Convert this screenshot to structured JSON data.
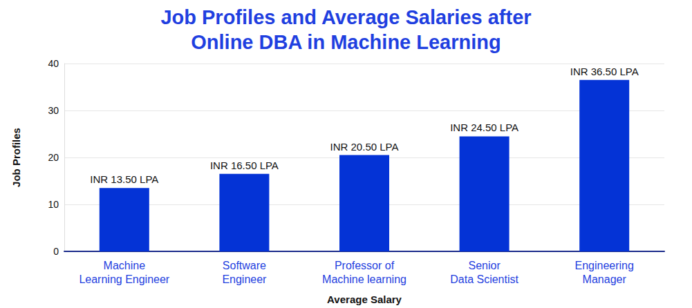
{
  "chart_data": {
    "type": "bar",
    "title": "Job Profiles and Average Salaries after\nOnline DBA in Machine Learning",
    "x_label": "Average Salary",
    "y_label": "Job Profiles",
    "categories": [
      "Machine\nLearning Engineer",
      "Software\nEngineer",
      "Professor of\nMachine learning",
      "Senior\nData Scientist",
      "Engineering\nManager"
    ],
    "values": [
      13.5,
      16.5,
      20.5,
      24.5,
      36.5
    ],
    "value_labels": [
      "INR 13.50 LPA",
      "INR 16.50 LPA",
      "INR 20.50 LPA",
      "INR 24.50 LPA",
      "INR 36.50 LPA"
    ],
    "color": "#0433d6",
    "ylim": [
      0,
      40
    ],
    "yticks": [
      0,
      10,
      20,
      30,
      40
    ],
    "grid": true,
    "data_labels": true
  }
}
